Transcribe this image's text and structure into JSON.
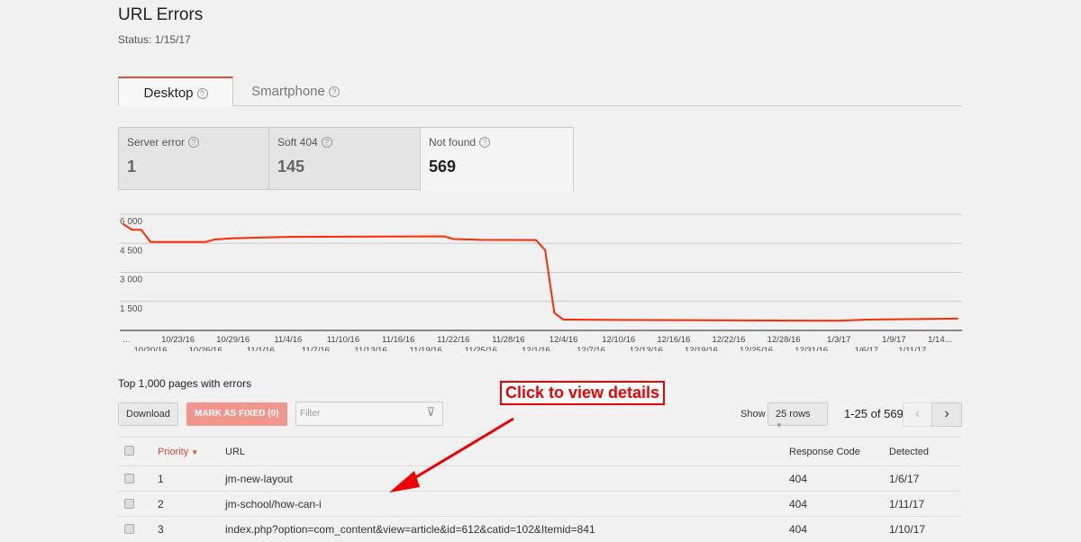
{
  "header": {
    "title": "URL Errors",
    "status": "Status: 1/15/17"
  },
  "tabs": [
    {
      "label": "Desktop",
      "active": true
    },
    {
      "label": "Smartphone",
      "active": false
    }
  ],
  "cards": [
    {
      "label": "Server error",
      "value": "1"
    },
    {
      "label": "Soft 404",
      "value": "145"
    },
    {
      "label": "Not found",
      "value": "569",
      "active": true
    }
  ],
  "chart_data": {
    "type": "line",
    "ylim": [
      0,
      6000
    ],
    "yticks": [
      "6 000",
      "4 500",
      "3 000",
      "1 500"
    ],
    "ytick_values": [
      6000,
      4500,
      3000,
      1500
    ],
    "grid": true,
    "color": "#ff2a00",
    "x_labels_top": [
      {
        "d": "...",
        "date": "2016-10-17"
      },
      {
        "d": "10/23/16",
        "date": "2016-10-23"
      },
      {
        "d": "10/29/16",
        "date": "2016-10-29"
      },
      {
        "d": "11/4/16",
        "date": "2016-11-04"
      },
      {
        "d": "11/10/16",
        "date": "2016-11-10"
      },
      {
        "d": "11/16/16",
        "date": "2016-11-16"
      },
      {
        "d": "11/22/16",
        "date": "2016-11-22"
      },
      {
        "d": "11/28/16",
        "date": "2016-11-28"
      },
      {
        "d": "12/4/16",
        "date": "2016-12-04"
      },
      {
        "d": "12/10/16",
        "date": "2016-12-10"
      },
      {
        "d": "12/16/16",
        "date": "2016-12-16"
      },
      {
        "d": "12/22/16",
        "date": "2016-12-22"
      },
      {
        "d": "12/28/16",
        "date": "2016-12-28"
      },
      {
        "d": "1/3/17",
        "date": "2017-01-03"
      },
      {
        "d": "1/9/17",
        "date": "2017-01-09"
      },
      {
        "d": "1/14...",
        "date": "2017-01-14"
      }
    ],
    "x_labels_bottom": [
      {
        "d": "10/20/16",
        "date": "2016-10-20"
      },
      {
        "d": "10/26/16",
        "date": "2016-10-26"
      },
      {
        "d": "11/1/16",
        "date": "2016-11-01"
      },
      {
        "d": "11/7/16",
        "date": "2016-11-07"
      },
      {
        "d": "11/13/16",
        "date": "2016-11-13"
      },
      {
        "d": "11/19/16",
        "date": "2016-11-19"
      },
      {
        "d": "11/25/16",
        "date": "2016-11-25"
      },
      {
        "d": "12/1/16",
        "date": "2016-12-01"
      },
      {
        "d": "12/7/16",
        "date": "2016-12-07"
      },
      {
        "d": "12/13/16",
        "date": "2016-12-13"
      },
      {
        "d": "12/19/16",
        "date": "2016-12-19"
      },
      {
        "d": "12/25/16",
        "date": "2016-12-25"
      },
      {
        "d": "12/31/16",
        "date": "2016-12-31"
      },
      {
        "d": "1/6/17",
        "date": "2017-01-06"
      },
      {
        "d": "1/11/17",
        "date": "2017-01-11"
      }
    ],
    "points": [
      [
        "2016-10-17",
        5500
      ],
      [
        "2016-10-18",
        5200
      ],
      [
        "2016-10-19",
        5200
      ],
      [
        "2016-10-20",
        4570
      ],
      [
        "2016-10-26",
        4570
      ],
      [
        "2016-10-27",
        4700
      ],
      [
        "2016-10-29",
        4760
      ],
      [
        "2016-11-04",
        4830
      ],
      [
        "2016-11-21",
        4860
      ],
      [
        "2016-11-22",
        4720
      ],
      [
        "2016-11-25",
        4680
      ],
      [
        "2016-12-01",
        4670
      ],
      [
        "2016-12-02",
        4150
      ],
      [
        "2016-12-03",
        900
      ],
      [
        "2016-12-04",
        560
      ],
      [
        "2016-12-10",
        540
      ],
      [
        "2017-01-03",
        500
      ],
      [
        "2017-01-06",
        560
      ],
      [
        "2017-01-16",
        610
      ]
    ]
  },
  "table": {
    "heading": "Top 1,000 pages with errors",
    "download": "Download",
    "mark_fixed": "MARK AS FIXED (0)",
    "filter_placeholder": "Filter",
    "show": "Show",
    "rows_select": "25 rows",
    "range": "1-25 of 569",
    "columns": {
      "priority": "Priority",
      "url": "URL",
      "code": "Response Code",
      "detected": "Detected"
    },
    "rows": [
      {
        "priority": "1",
        "url": "jm-new-layout",
        "code": "404",
        "detected": "1/6/17"
      },
      {
        "priority": "2",
        "url": "jm-school/how-can-i",
        "code": "404",
        "detected": "1/11/17"
      },
      {
        "priority": "3",
        "url": "index.php?option=com_content&view=article&id=612&catid=102&Itemid=841",
        "code": "404",
        "detected": "1/10/17"
      }
    ]
  },
  "annotation": "Click to view details"
}
